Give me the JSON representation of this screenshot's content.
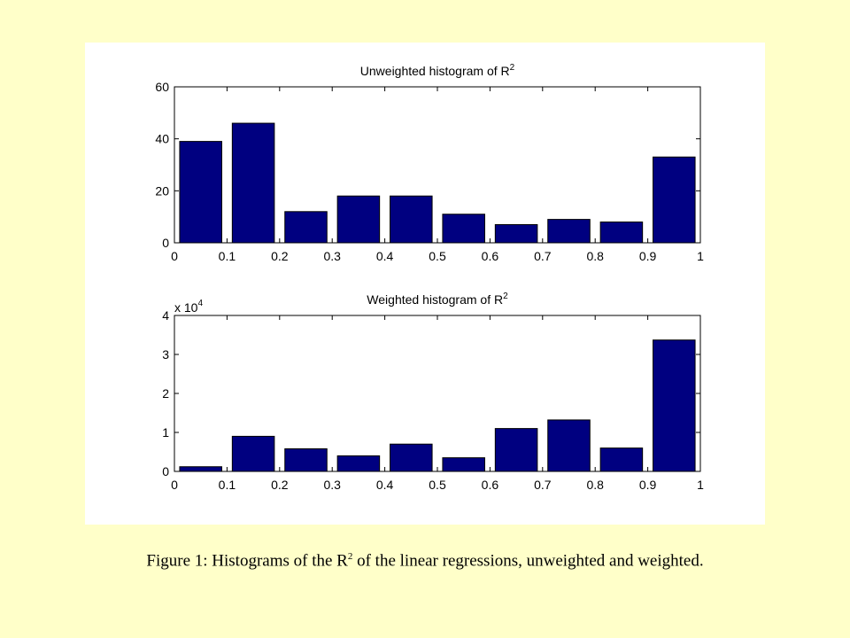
{
  "chart_data": [
    {
      "type": "bar",
      "title": "Unweighted histogram of R",
      "title_sup": "2",
      "x_ticks": [
        "0",
        "0.1",
        "0.2",
        "0.3",
        "0.4",
        "0.5",
        "0.6",
        "0.7",
        "0.8",
        "0.9",
        "1"
      ],
      "y_ticks": [
        "0",
        "20",
        "40",
        "60"
      ],
      "x": [
        0.05,
        0.15,
        0.25,
        0.35,
        0.45,
        0.55,
        0.65,
        0.75,
        0.85,
        0.95
      ],
      "values": [
        39,
        46,
        12,
        18,
        18,
        11,
        7,
        9,
        8,
        33
      ],
      "xlim": [
        0,
        1
      ],
      "ylim": [
        0,
        60
      ],
      "bar_color": "#000080"
    },
    {
      "type": "bar",
      "title": "Weighted histogram of R",
      "title_sup": "2",
      "y_multiplier_base": "x 10",
      "y_multiplier_exp": "4",
      "x_ticks": [
        "0",
        "0.1",
        "0.2",
        "0.3",
        "0.4",
        "0.5",
        "0.6",
        "0.7",
        "0.8",
        "0.9",
        "1"
      ],
      "y_ticks": [
        "0",
        "1",
        "2",
        "3",
        "4"
      ],
      "x": [
        0.05,
        0.15,
        0.25,
        0.35,
        0.45,
        0.55,
        0.65,
        0.75,
        0.85,
        0.95
      ],
      "values": [
        0.12,
        0.9,
        0.58,
        0.4,
        0.7,
        0.35,
        1.1,
        1.32,
        0.6,
        3.37
      ],
      "xlim": [
        0,
        1
      ],
      "ylim": [
        0,
        4
      ],
      "bar_color": "#000080"
    }
  ],
  "caption": {
    "before": "Figure 1: Histograms of the R",
    "sup": "2",
    "after": " of the linear regressions, unweighted and weighted."
  },
  "colors": {
    "page_background": "#ffffc9",
    "panel_background": "#ffffff",
    "bar_fill": "#000080"
  }
}
